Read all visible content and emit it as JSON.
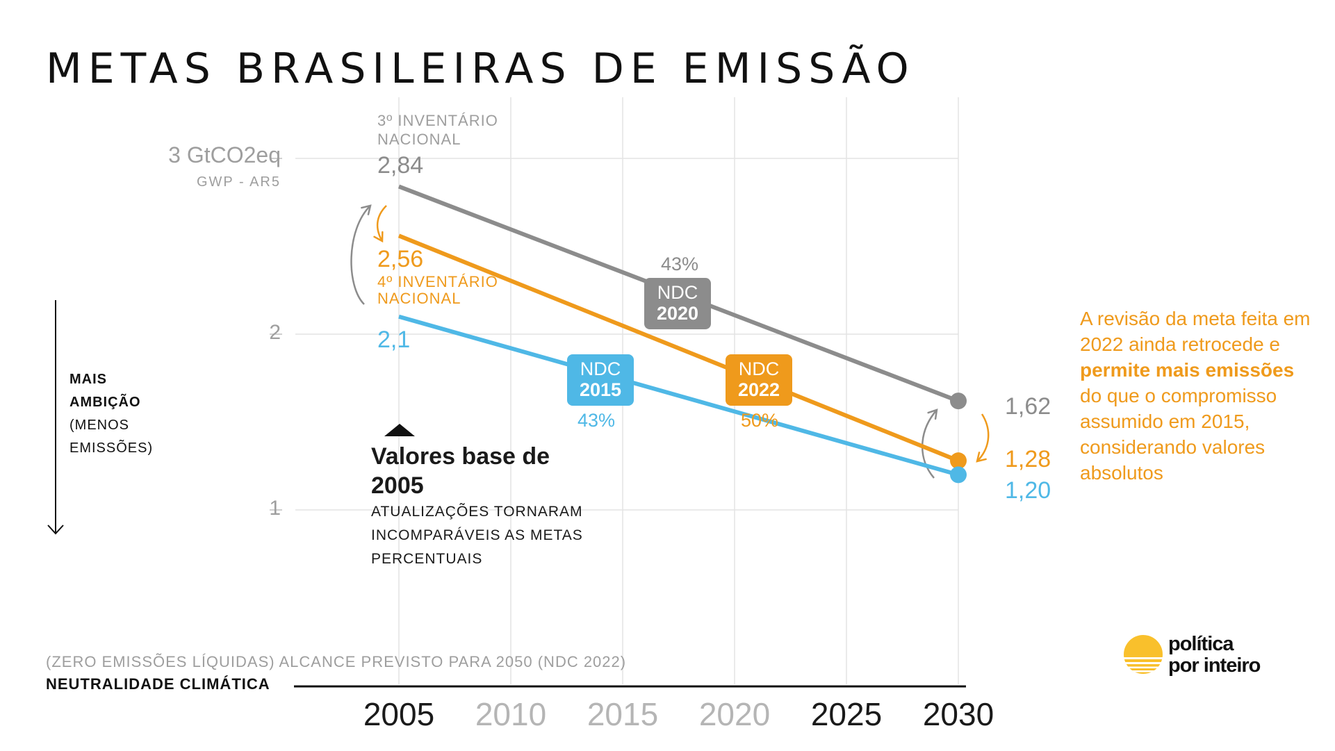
{
  "title": "METAS BRASILEIRAS DE EMISSÃO",
  "y_axis": {
    "unit_label": "3 GtCO2eq",
    "sub_label": "GWP - AR5",
    "tick_2": "2",
    "tick_1": "1"
  },
  "ambition": {
    "line1": "MAIS",
    "line2": "AMBIÇÃO",
    "line3": "(MENOS",
    "line4": "EMISSÕES)"
  },
  "inventories": {
    "third": "3º INVENTÁRIO NACIONAL",
    "fourth": "4º INVENTÁRIO NACIONAL"
  },
  "baseline_note": {
    "title": "Valores base de 2005",
    "body": "ATUALIZAÇÕES TORNARAM INCOMPARÁVEIS AS METAS PERCENTUAIS"
  },
  "revision_note": {
    "part1": "A revisão da meta feita em 2022 ainda retrocede e ",
    "bold": "permite mais emissões",
    "part2": " do que o compromisso assumido em 2015, considerando valores absolutos"
  },
  "neutrality": {
    "zero_line": "(ZERO EMISSÕES LÍQUIDAS) ALCANCE PREVISTO PARA 2050 (NDC 2022)",
    "label": "NEUTRALIDADE CLIMÁTICA"
  },
  "logo": {
    "line1": "política",
    "line2": "por inteiro"
  },
  "colors": {
    "ndc2020": "#8c8c8c",
    "ndc2022": "#ef9a1c",
    "ndc2015": "#4fb8e6",
    "grid": "#e3e3e3",
    "axis_text": "#9e9e9e",
    "logo_sun": "#f9c02c"
  },
  "chart_data": {
    "type": "line",
    "title": "METAS BRASILEIRAS DE EMISSÃO",
    "ylabel": "3 GtCO2eq",
    "xlabel": "",
    "x_ticks": [
      "2005",
      "2010",
      "2015",
      "2020",
      "2025",
      "2030"
    ],
    "x_ticks_dark": [
      "2005",
      "2025",
      "2030"
    ],
    "ylim": [
      0,
      3
    ],
    "y_ticks": [
      1,
      2,
      3
    ],
    "grid": true,
    "series": [
      {
        "name": "NDC 2020",
        "box_label": "NDC",
        "box_year": "2020",
        "color": "#8c8c8c",
        "x": [
          2005,
          2030
        ],
        "y": [
          2.84,
          1.62
        ],
        "start_label": "2,84",
        "end_label": "1,62",
        "reduction": "43%"
      },
      {
        "name": "NDC 2022",
        "box_label": "NDC",
        "box_year": "2022",
        "color": "#ef9a1c",
        "x": [
          2005,
          2030
        ],
        "y": [
          2.56,
          1.28
        ],
        "start_label": "2,56",
        "end_label": "1,28",
        "reduction": "50%"
      },
      {
        "name": "NDC 2015",
        "box_label": "NDC",
        "box_year": "2015",
        "color": "#4fb8e6",
        "x": [
          2005,
          2030
        ],
        "y": [
          2.1,
          1.2
        ],
        "start_label": "2,1",
        "end_label": "1,20",
        "reduction": "43%"
      }
    ]
  }
}
